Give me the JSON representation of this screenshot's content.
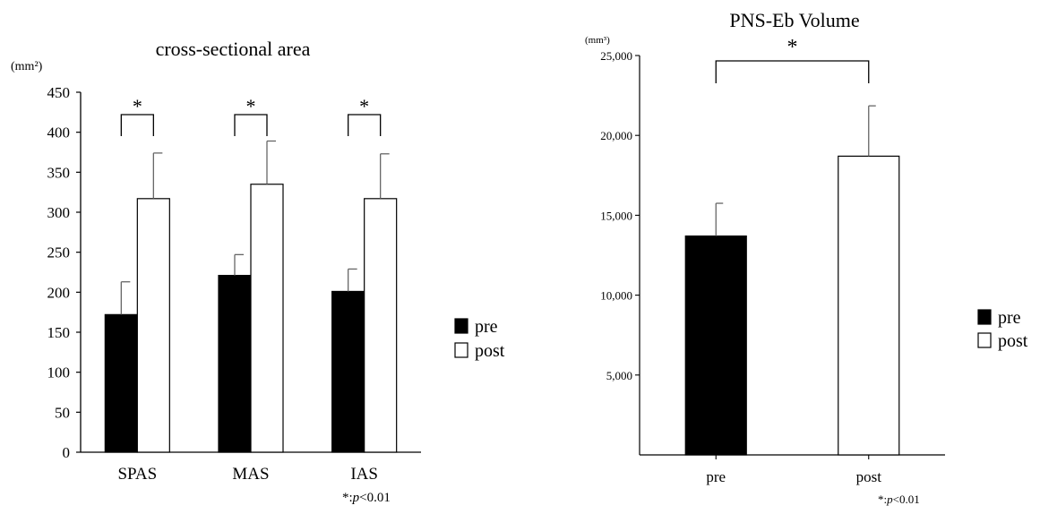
{
  "chart_data": [
    {
      "type": "bar",
      "title": "cross-sectional area",
      "unit": "(mm²)",
      "categories": [
        "SPAS",
        "MAS",
        "IAS"
      ],
      "series": [
        {
          "name": "pre",
          "color": "#000000",
          "values": [
            172,
            221,
            201
          ],
          "errors": [
            41,
            26,
            28
          ]
        },
        {
          "name": "post",
          "color": "#ffffff",
          "values": [
            317,
            335,
            317
          ],
          "errors": [
            57,
            54,
            56
          ]
        }
      ],
      "ylim": [
        0,
        450
      ],
      "yticks": [
        "0",
        "50",
        "100",
        "150",
        "200",
        "250",
        "300",
        "350",
        "400",
        "450"
      ],
      "significance": [
        "*",
        "*",
        "*"
      ],
      "legend": [
        "pre",
        "post"
      ],
      "legend_position": "right",
      "footnote": "*:p<0.01",
      "grid": false
    },
    {
      "type": "bar",
      "title": "PNS-Eb Volume",
      "unit": "(mm³)",
      "categories": [
        "pre",
        "post"
      ],
      "values": [
        13700,
        18700
      ],
      "errors": [
        2050,
        3150
      ],
      "colors": [
        "#000000",
        "#ffffff"
      ],
      "ylim": [
        0,
        25000
      ],
      "yticks": [
        "5,000",
        "10,000",
        "15,000",
        "20,000",
        "25,000"
      ],
      "significance": "*",
      "legend": [
        "pre",
        "post"
      ],
      "legend_position": "right",
      "footnote": "*:p<0.01",
      "grid": false
    }
  ]
}
